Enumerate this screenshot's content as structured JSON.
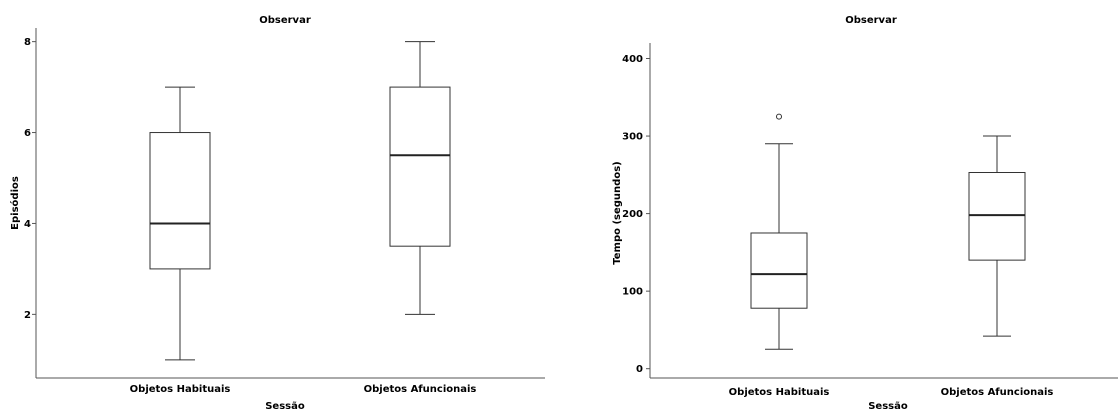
{
  "chart_data": [
    {
      "type": "box",
      "title": "Observar",
      "xlabel": "Sessão",
      "ylabel": "Episódios",
      "ylim": [
        0.6,
        8.3
      ],
      "yticks": [
        2,
        4,
        6,
        8
      ],
      "categories": [
        "Objetos Habituais",
        "Objetos Afuncionais"
      ],
      "boxes": [
        {
          "whisker_low": 1,
          "q1": 3,
          "median": 4,
          "q3": 6,
          "whisker_high": 7,
          "outliers": []
        },
        {
          "whisker_low": 2,
          "q1": 3.5,
          "median": 5.5,
          "q3": 7,
          "whisker_high": 8,
          "outliers": []
        }
      ]
    },
    {
      "type": "box",
      "title": "Observar",
      "xlabel": "Sessão",
      "ylabel": "Tempo (segundos)",
      "ylim": [
        -12,
        420
      ],
      "yticks": [
        0,
        100,
        200,
        300,
        400
      ],
      "categories": [
        "Objetos Habituais",
        "Objetos Afuncionais"
      ],
      "boxes": [
        {
          "whisker_low": 25,
          "q1": 78,
          "median": 122,
          "q3": 175,
          "whisker_high": 290,
          "outliers": [
            325
          ]
        },
        {
          "whisker_low": 42,
          "q1": 140,
          "median": 198,
          "q3": 253,
          "whisker_high": 300,
          "outliers": []
        }
      ]
    }
  ]
}
